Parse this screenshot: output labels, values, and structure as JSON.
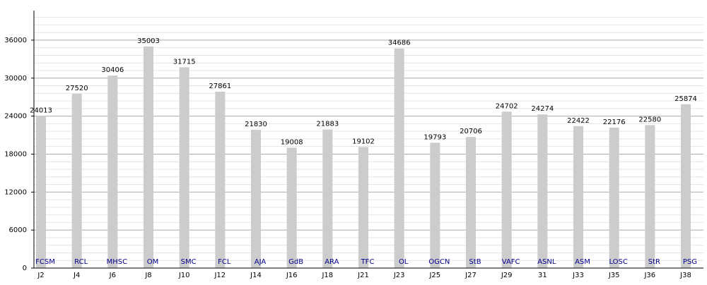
{
  "chart_data": {
    "type": "bar",
    "categories": [
      "J2",
      "J4",
      "J6",
      "J8",
      "J10",
      "J12",
      "J14",
      "J16",
      "J18",
      "J21",
      "J23",
      "J25",
      "J27",
      "J29",
      "31",
      "J33",
      "J35",
      "J36",
      "J38"
    ],
    "opponents": [
      "FCSM",
      "RCL",
      "MHSC",
      "OM",
      "SMC",
      "FCL",
      "AJA",
      "GdB",
      "ARA",
      "TFC",
      "OL",
      "OGCN",
      "StB",
      "VAFC",
      "ASNL",
      "ASM",
      "LOSC",
      "StR",
      "PSG"
    ],
    "values": [
      24013,
      27520,
      30406,
      35003,
      31715,
      27861,
      21830,
      19008,
      21883,
      19102,
      34686,
      19793,
      20706,
      24702,
      24274,
      22422,
      22176,
      22580,
      25874
    ],
    "color": "#cccccc",
    "opponent_color": "#00008b",
    "ylim": [
      0,
      40000
    ],
    "yticks": [
      0,
      6000,
      12000,
      18000,
      24000,
      30000,
      36000
    ],
    "grid": true
  }
}
